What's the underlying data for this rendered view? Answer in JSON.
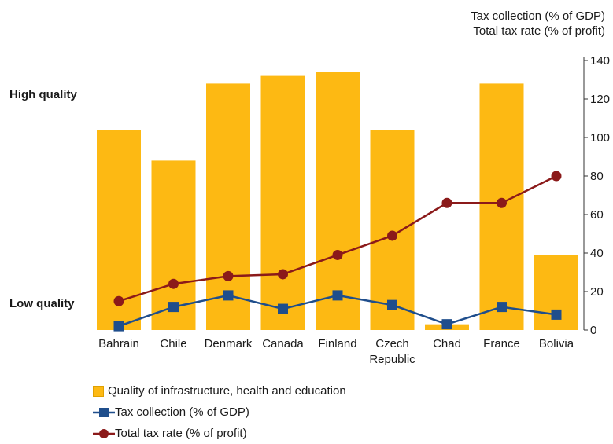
{
  "chart_data": {
    "type": "bar",
    "categories": [
      "Bahrain",
      "Chile",
      "Denmark",
      "Canada",
      "Finland",
      "Czech Republic",
      "Chad",
      "France",
      "Bolivia"
    ],
    "category_lines": [
      [
        "Bahrain"
      ],
      [
        "Chile"
      ],
      [
        "Denmark"
      ],
      [
        "Canada"
      ],
      [
        "Finland"
      ],
      [
        "Czech",
        "Republic"
      ],
      [
        "Chad"
      ],
      [
        "France"
      ],
      [
        "Bolivia"
      ]
    ],
    "series": [
      {
        "name": "Quality of infrastructure, health and education",
        "kind": "bar",
        "axis": "left-qualitative",
        "values": [
          104,
          88,
          128,
          132,
          134,
          104,
          3,
          128,
          39
        ]
      },
      {
        "name": "Tax collection (% of GDP)",
        "kind": "line",
        "axis": "right",
        "values": [
          2,
          12,
          18,
          11,
          18,
          13,
          3,
          12,
          8
        ]
      },
      {
        "name": "Total tax rate (% of profit)",
        "kind": "line",
        "axis": "right",
        "values": [
          15,
          24,
          28,
          29,
          39,
          49,
          66,
          66,
          80
        ]
      }
    ],
    "y_right": {
      "min": 0,
      "max": 140,
      "ticks": [
        "0",
        "20",
        "40",
        "60",
        "80",
        "100",
        "120",
        "140"
      ]
    },
    "y_right_title": [
      "Tax collection (% of GDP)",
      "Total tax rate (% of profit)"
    ],
    "y_left_labels": {
      "high": "High quality",
      "low": "Low quality"
    },
    "grid": false,
    "legend_position": "bottom-left",
    "colors": {
      "bar": "#FDB913",
      "tax_collection": "#1F4E8C",
      "total_tax_rate": "#8B1A1A",
      "axis": "#333333"
    }
  }
}
